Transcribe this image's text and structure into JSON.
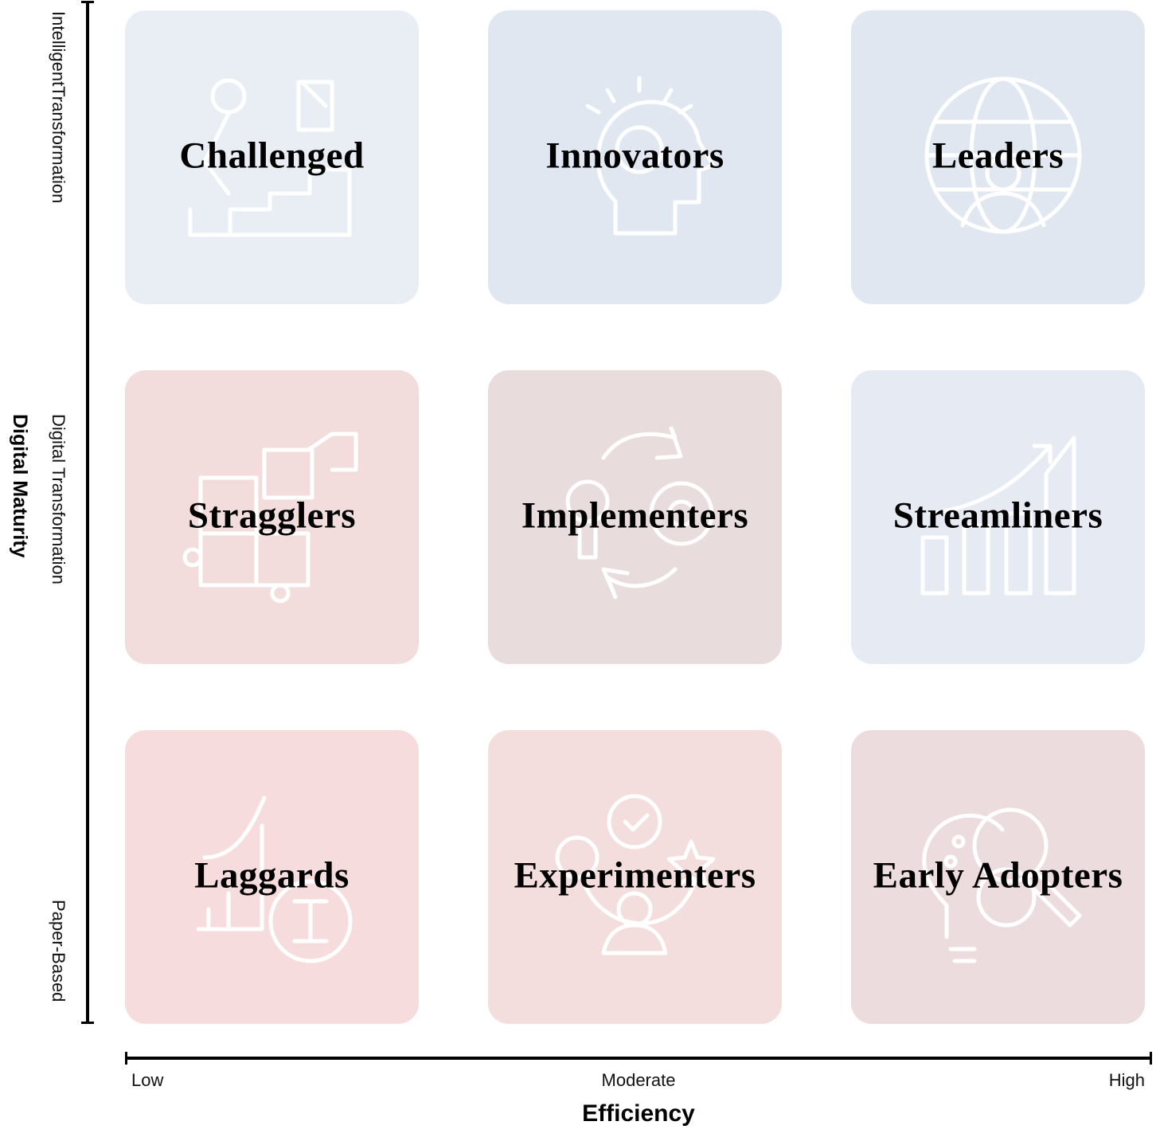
{
  "y_axis": {
    "title": "Digital Maturity",
    "levels": [
      "IntelligentTransformation",
      "Digital Transformation",
      "Paper-Based"
    ]
  },
  "x_axis": {
    "title": "Efficiency",
    "levels": [
      "Low",
      "Moderate",
      "High"
    ]
  },
  "quadrants": [
    {
      "label": "Challenged",
      "icon": "person-climbing-steps-to-flag-icon",
      "color": "#e9edf4"
    },
    {
      "label": "Innovators",
      "icon": "head-with-lightbulb-icon",
      "color": "#e1e7f0"
    },
    {
      "label": "Leaders",
      "icon": "globe-businessman-icon",
      "color": "#e1e7f0"
    },
    {
      "label": "Stragglers",
      "icon": "puzzle-pieces-icon",
      "color": "#f3dcdc"
    },
    {
      "label": "Implementers",
      "icon": "lightbulb-gear-cycle-icon",
      "color": "#e8dcdc"
    },
    {
      "label": "Streamliners",
      "icon": "growth-bar-chart-icon",
      "color": "#e6eaf3"
    },
    {
      "label": "Laggards",
      "icon": "declining-chart-icon",
      "color": "#f7dcdd"
    },
    {
      "label": "Experimenters",
      "icon": "person-gear-idea-icon",
      "color": "#f4dddd"
    },
    {
      "label": "Early Adopters",
      "icon": "lightbulb-gear-magnifier-icon",
      "color": "#ecdcdd"
    }
  ]
}
